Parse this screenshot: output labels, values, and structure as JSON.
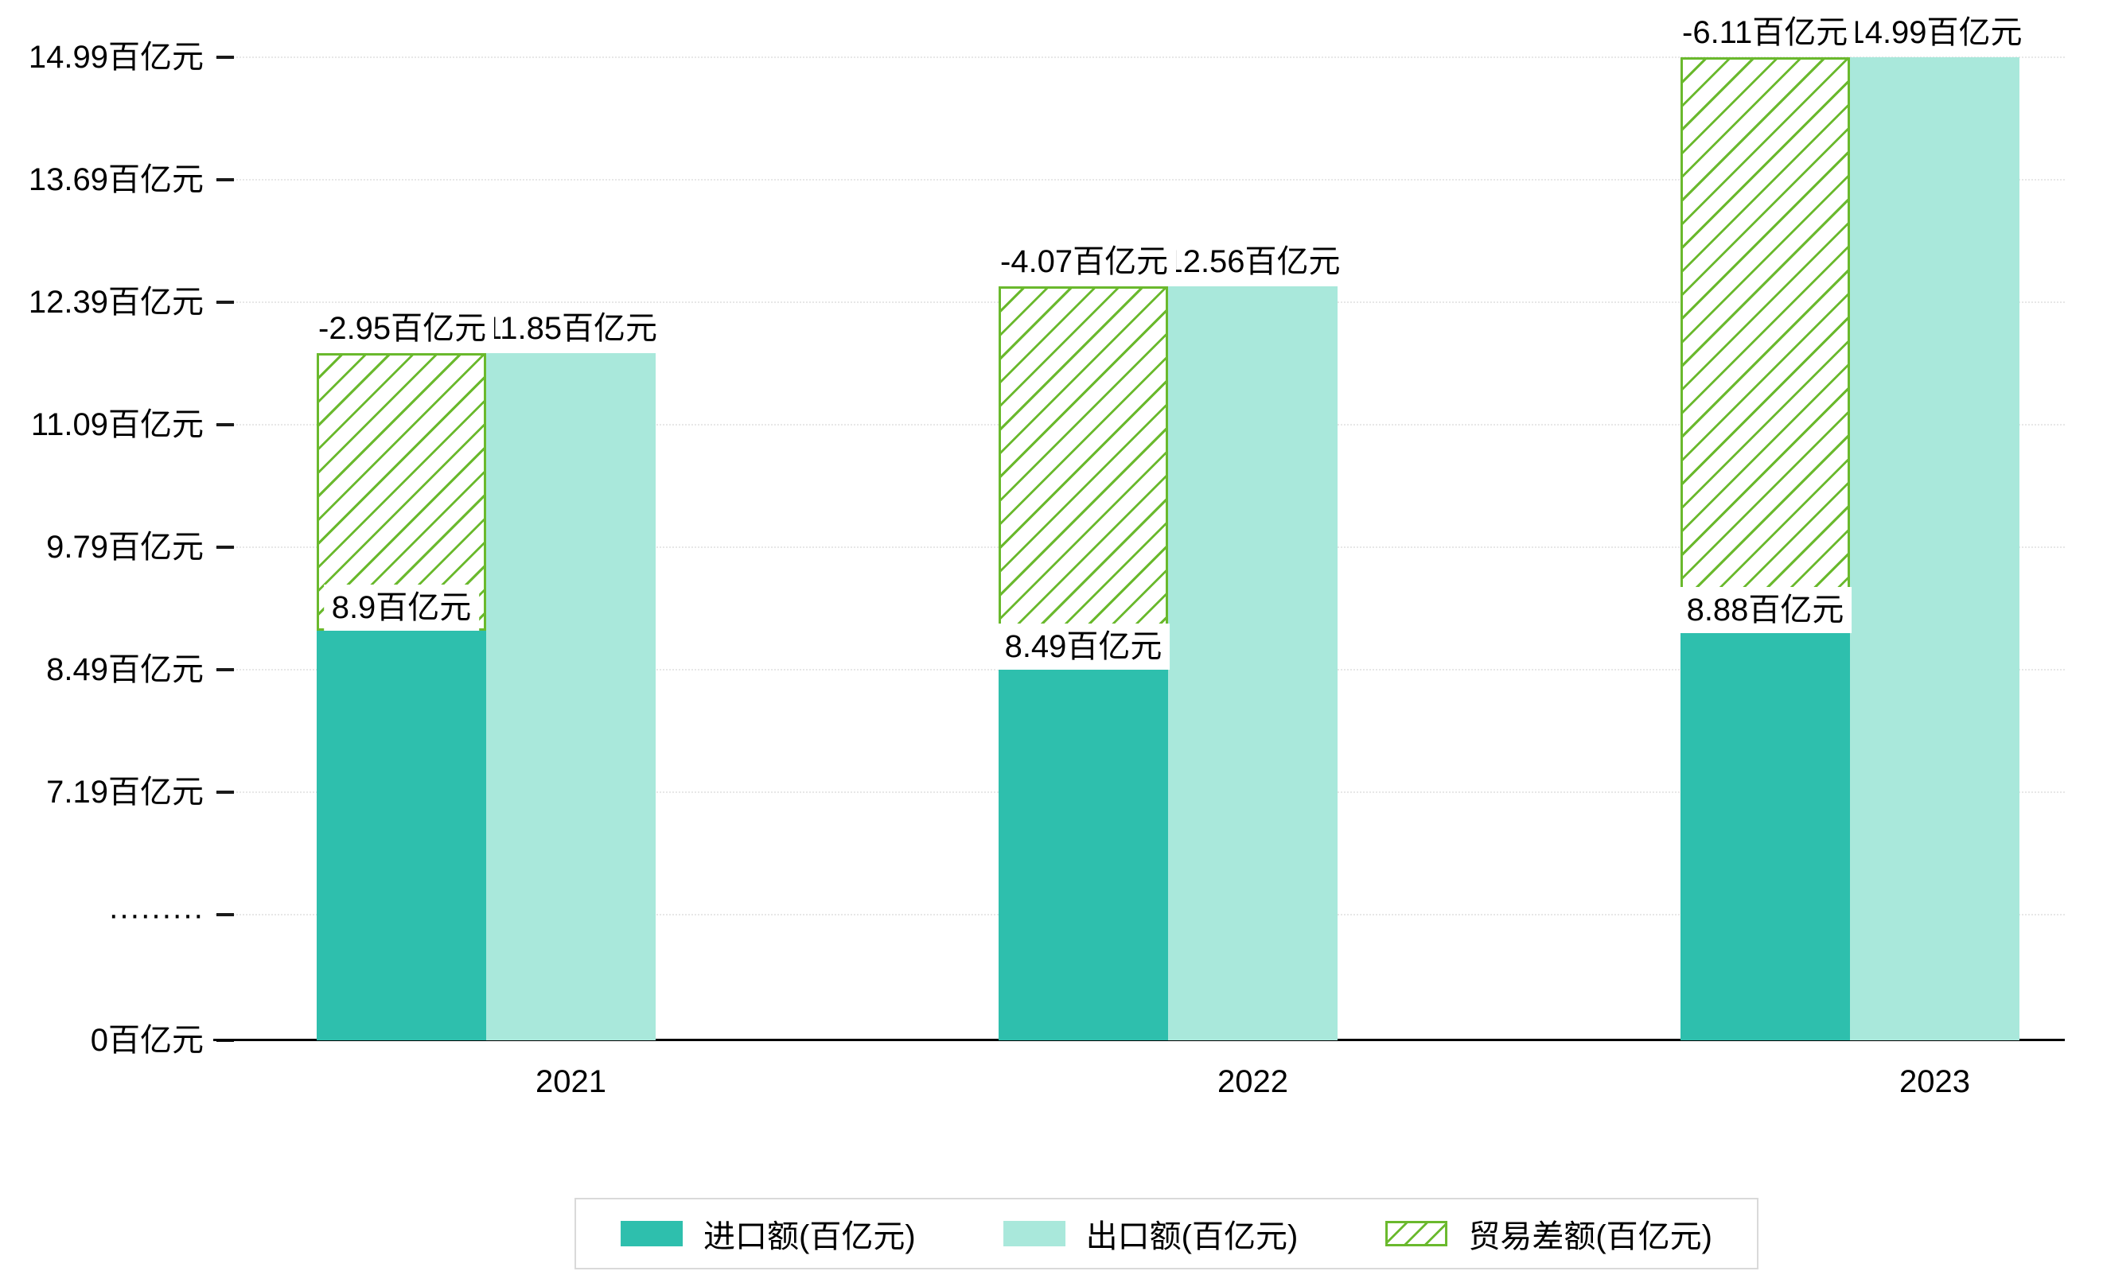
{
  "chart_data": {
    "type": "bar",
    "title": "",
    "categories": [
      "2021",
      "2022",
      "2023"
    ],
    "series": [
      {
        "name": "进口额(百亿元)",
        "style": "solid",
        "color": "#2ebfad",
        "values": [
          8.9,
          8.49,
          8.88
        ],
        "value_labels": [
          "8.9百亿元",
          "8.49百亿元",
          "8.88百亿元"
        ]
      },
      {
        "name": "出口额(百亿元)",
        "style": "solid",
        "color": "#a9e8db",
        "values": [
          11.85,
          12.56,
          14.99
        ],
        "value_labels": [
          "11.85百亿元",
          "12.56百亿元",
          "14.99百亿元"
        ]
      },
      {
        "name": "贸易差额(百亿元)",
        "style": "hatched",
        "color": "#6ab92d",
        "values": [
          -2.95,
          -4.07,
          -6.11
        ],
        "value_labels": [
          "-2.95百亿元",
          "-4.07百亿元",
          "-6.11百亿元"
        ]
      }
    ],
    "y_axis": {
      "unit": "百亿元",
      "axis_break_label": "·········",
      "break_below_value": 5.89,
      "ticks": [
        {
          "label": "14.99百亿元",
          "value": 14.99
        },
        {
          "label": "13.69百亿元",
          "value": 13.69
        },
        {
          "label": "12.39百亿元",
          "value": 12.39
        },
        {
          "label": "11.09百亿元",
          "value": 11.09
        },
        {
          "label": "9.79百亿元",
          "value": 9.79
        },
        {
          "label": "8.49百亿元",
          "value": 8.49
        },
        {
          "label": "7.19百亿元",
          "value": 7.19
        },
        {
          "label": "·········",
          "value": "break"
        },
        {
          "label": "0百亿元",
          "value": 0
        }
      ]
    },
    "x_axis": {
      "labels": [
        "2021",
        "2022",
        "2023"
      ]
    },
    "legend": {
      "position": "bottom-center",
      "items": [
        {
          "label": "进口额(百亿元)",
          "swatch": "solid-teal"
        },
        {
          "label": "出口额(百亿元)",
          "swatch": "solid-light-teal"
        },
        {
          "label": "贸易差额(百亿元)",
          "swatch": "green-hatched"
        }
      ]
    },
    "grid": true,
    "layout_notes": "y-axis broken between 0 and 7.19 (dotted tick); balance bars drawn hatched spanning from import top to export top over the import bar column; value labels have opaque white backgrounds that partially cover export labels"
  },
  "colors": {
    "import_bar": "#2ebfad",
    "export_bar": "#a9e8db",
    "balance_hatch": "#6ab92d",
    "axis_line": "#000000",
    "gridline": "#e7e7e7",
    "legend_border": "#d9d9d9",
    "label_background": "#ffffff",
    "text": "#000000"
  }
}
